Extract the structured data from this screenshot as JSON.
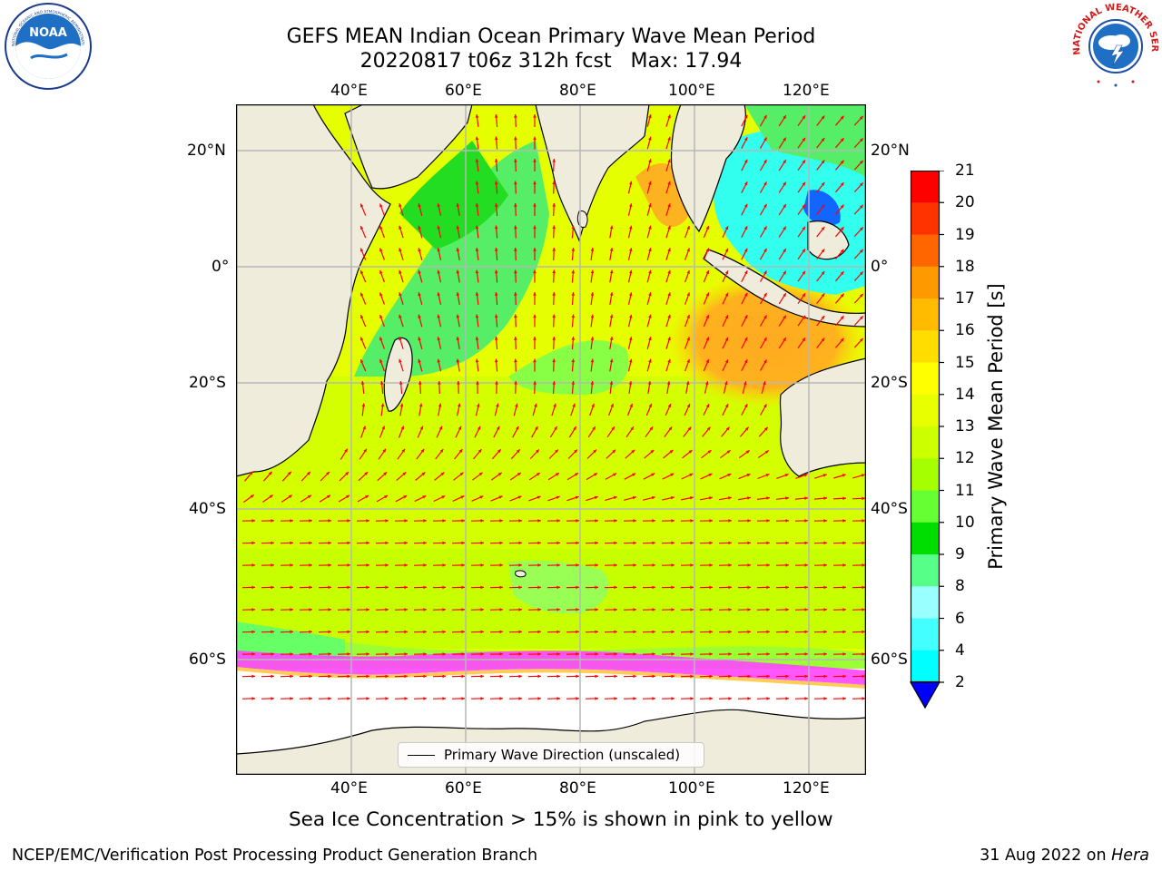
{
  "header": {
    "title_line1": "GEFS MEAN Indian Ocean Primary Wave Mean Period",
    "title_line2": "20220817 t06z 312h fcst   Max: 17.94"
  },
  "logos": {
    "left": "NOAA",
    "left_ring": "NATIONAL OCEANIC AND ATMOSPHERIC ADMINISTRATION · U.S. DEPARTMENT OF COMMERCE",
    "right_ring": "NATIONAL WEATHER SERVICE"
  },
  "map": {
    "lon_ticks": [
      "40°E",
      "60°E",
      "80°E",
      "100°E",
      "120°E"
    ],
    "lat_ticks": [
      "20°N",
      "0°",
      "20°S",
      "40°S",
      "60°S"
    ],
    "legend": "Primary Wave Direction (unscaled)",
    "colors": {
      "land": "#efecdc",
      "grid": "#b7b7b7",
      "arrow": "#ff0000",
      "ice": "#ff40ff"
    }
  },
  "colorbar": {
    "label": "Primary Wave Mean Period [s]",
    "ticks": [
      "21",
      "20",
      "19",
      "18",
      "17",
      "16",
      "15",
      "14",
      "13",
      "12",
      "11",
      "10",
      "9",
      "8",
      "6",
      "4",
      "2"
    ],
    "colors": [
      "#ff0000",
      "#ff3300",
      "#ff6600",
      "#ff9900",
      "#ffbb00",
      "#ffdd00",
      "#ffff00",
      "#e8ff00",
      "#ccff00",
      "#a6ff00",
      "#66ff33",
      "#00dd00",
      "#55ff88",
      "#99ffff",
      "#44ffff",
      "#00ffff",
      "#00aaff",
      "#0000ff"
    ]
  },
  "footer": {
    "note": "Sea Ice Concentration > 15% is shown in pink to yellow",
    "credit_left": "NCEP/EMC/Verification Post Processing Product Generation Branch",
    "credit_right_prefix": "31 Aug 2022 on ",
    "credit_right_host": "Hera"
  }
}
